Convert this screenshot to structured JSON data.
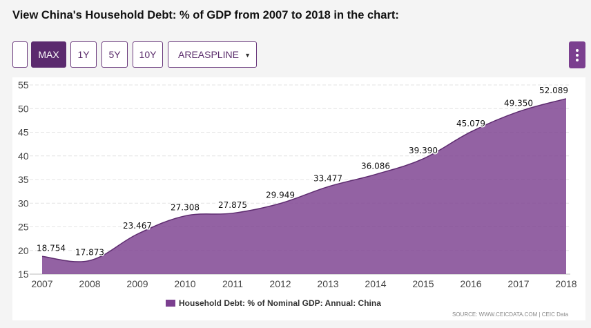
{
  "page": {
    "title": "View China's Household Debt: % of GDP from 2007 to 2018 in the chart:"
  },
  "toolbar": {
    "blank_label": "",
    "max_label": "MAX",
    "y1_label": "1Y",
    "y5_label": "5Y",
    "y10_label": "10Y",
    "chart_type_label": "AREASPLINE",
    "dropdown_icon": "triangle-down-icon",
    "menu_icon": "kebab-menu-icon"
  },
  "colors": {
    "series": "#7b3f8f",
    "accent": "#5b2a6e",
    "grid": "#e3e3e3"
  },
  "chart_data": {
    "type": "area",
    "x": [
      2007,
      2008,
      2009,
      2010,
      2011,
      2012,
      2013,
      2014,
      2015,
      2016,
      2017,
      2018
    ],
    "series": [
      {
        "name": "Household Debt: % of Nominal GDP: Annual: China",
        "values": [
          18.754,
          17.873,
          23.467,
          27.308,
          27.875,
          29.949,
          33.477,
          36.086,
          39.39,
          45.079,
          49.35,
          52.089
        ],
        "labels": [
          "18.754",
          "17.873",
          "23.467",
          "27.308",
          "27.875",
          "29.949",
          "33.477",
          "36.086",
          "39.390",
          "45.079",
          "49.350",
          "52.089"
        ]
      }
    ],
    "ylim": [
      15,
      55
    ],
    "yticks": [
      15,
      20,
      25,
      30,
      35,
      40,
      45,
      50,
      55
    ],
    "grid": true,
    "legend_position": "bottom-center",
    "source": "SOURCE: WWW.CEICDATA.COM | CEIC Data"
  }
}
